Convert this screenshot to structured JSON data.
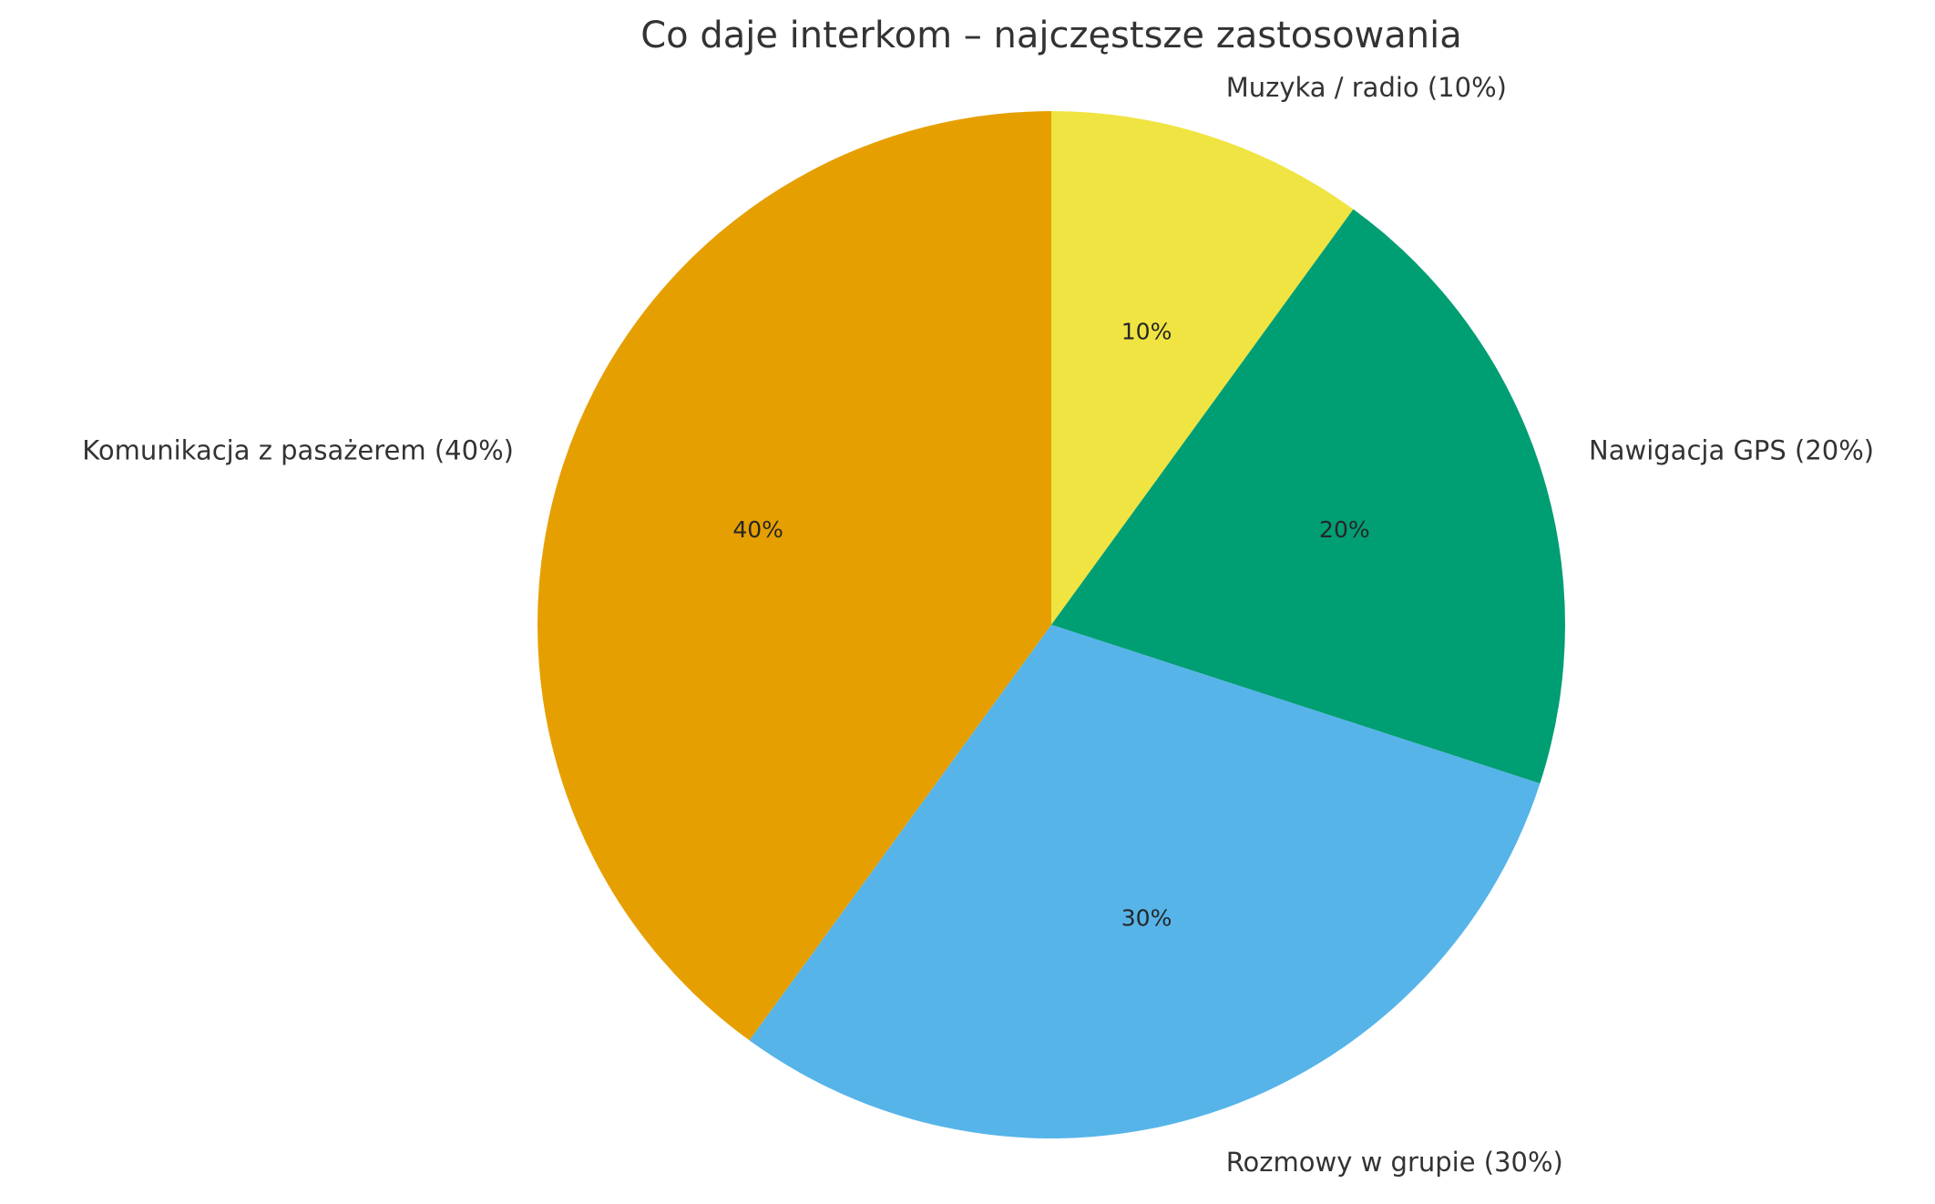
{
  "chart_data": {
    "type": "pie",
    "title": "Co daje interkom – najczęstsze zastosowania",
    "start": "top",
    "direction": "clockwise",
    "slices": [
      {
        "label": "Muzyka / radio (10%)",
        "value": 10,
        "pct_label": "10%",
        "color": "#F0E442"
      },
      {
        "label": "Nawigacja GPS (20%)",
        "value": 20,
        "pct_label": "20%",
        "color": "#009E73"
      },
      {
        "label": "Rozmowy w grupie (30%)",
        "value": 30,
        "pct_label": "30%",
        "color": "#56B4E9"
      },
      {
        "label": "Komunikacja z pasażerem (40%)",
        "value": 40,
        "pct_label": "40%",
        "color": "#E69F00"
      }
    ]
  }
}
